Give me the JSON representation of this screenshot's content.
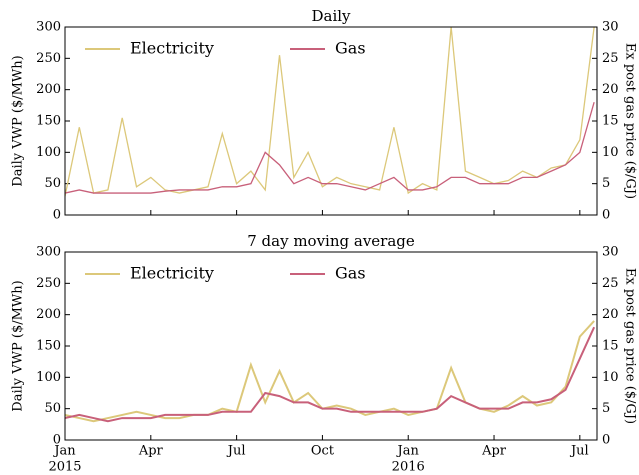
{
  "chart_data": [
    {
      "type": "line",
      "title": "Daily",
      "ylabel": "Daily VWP ($/MWh)",
      "y2label": "Ex post gas price ($/GJ)",
      "x": [
        0,
        0.5,
        1,
        1.5,
        2,
        2.5,
        3,
        3.5,
        4,
        4.5,
        5,
        5.5,
        6,
        6.5,
        7,
        7.5,
        8,
        8.5,
        9,
        9.5,
        10,
        10.5,
        11,
        11.5,
        12,
        12.5,
        13,
        13.5,
        14,
        14.5,
        15,
        15.5,
        16,
        16.5,
        17,
        17.5,
        18,
        18.5
      ],
      "xlim": [
        0,
        18.6
      ],
      "ylim": [
        0,
        300
      ],
      "yticks": [
        0,
        50,
        100,
        150,
        200,
        250,
        300
      ],
      "y2lim": [
        0,
        30
      ],
      "y2ticks": [
        0,
        5,
        10,
        15,
        20,
        25,
        30
      ],
      "legend": "upper left",
      "series": [
        {
          "name": "Electricity",
          "color": "#dcc87a",
          "values": [
            30,
            140,
            35,
            40,
            155,
            45,
            60,
            40,
            35,
            40,
            45,
            130,
            50,
            70,
            40,
            255,
            60,
            100,
            45,
            60,
            50,
            45,
            40,
            140,
            35,
            50,
            40,
            300,
            70,
            60,
            50,
            55,
            70,
            60,
            75,
            80,
            120,
            300
          ]
        },
        {
          "name": "Gas",
          "color": "#c8607a",
          "axis": "y2",
          "values": [
            3.5,
            4,
            3.5,
            3.5,
            3.5,
            3.5,
            3.5,
            3.8,
            4,
            4,
            4,
            4.5,
            4.5,
            5,
            10,
            8,
            5,
            6,
            5,
            5,
            4.5,
            4,
            5,
            6,
            4,
            4,
            4.5,
            6,
            6,
            5,
            5,
            5,
            6,
            6,
            7,
            8,
            10,
            18
          ]
        }
      ]
    },
    {
      "type": "line",
      "title": "7 day moving average",
      "ylabel": "Daily VWP ($/MWh)",
      "y2label": "Ex post gas price ($/GJ)",
      "x": [
        0,
        0.5,
        1,
        1.5,
        2,
        2.5,
        3,
        3.5,
        4,
        4.5,
        5,
        5.5,
        6,
        6.5,
        7,
        7.5,
        8,
        8.5,
        9,
        9.5,
        10,
        10.5,
        11,
        11.5,
        12,
        12.5,
        13,
        13.5,
        14,
        14.5,
        15,
        15.5,
        16,
        16.5,
        17,
        17.5,
        18,
        18.5
      ],
      "xlim": [
        0,
        18.6
      ],
      "ylim": [
        0,
        300
      ],
      "yticks": [
        0,
        50,
        100,
        150,
        200,
        250,
        300
      ],
      "y2lim": [
        0,
        30
      ],
      "y2ticks": [
        0,
        5,
        10,
        15,
        20,
        25,
        30
      ],
      "legend": "upper left",
      "xticks": [
        {
          "value": 0,
          "label": "Jan"
        },
        {
          "value": 3,
          "label": "Apr"
        },
        {
          "value": 6,
          "label": "Jul"
        },
        {
          "value": 9,
          "label": "Oct"
        },
        {
          "value": 12,
          "label": "Jan"
        },
        {
          "value": 15,
          "label": "Apr"
        },
        {
          "value": 18,
          "label": "Jul"
        }
      ],
      "xtick_years": [
        {
          "value": 0,
          "label": "2015"
        },
        {
          "value": 12,
          "label": "2016"
        }
      ],
      "series": [
        {
          "name": "Electricity",
          "color": "#dcc87a",
          "values": [
            40,
            35,
            30,
            35,
            40,
            45,
            40,
            35,
            35,
            40,
            40,
            50,
            45,
            120,
            60,
            110,
            60,
            75,
            50,
            55,
            50,
            40,
            45,
            50,
            40,
            45,
            50,
            115,
            60,
            50,
            45,
            55,
            70,
            55,
            60,
            85,
            165,
            190
          ]
        },
        {
          "name": "Gas",
          "color": "#c8607a",
          "axis": "y2",
          "values": [
            3.5,
            4,
            3.5,
            3,
            3.5,
            3.5,
            3.5,
            4,
            4,
            4,
            4,
            4.5,
            4.5,
            4.5,
            7.5,
            7,
            6,
            6,
            5,
            5,
            4.5,
            4.5,
            4.5,
            4.5,
            4.5,
            4.5,
            5,
            7,
            6,
            5,
            5,
            5,
            6,
            6,
            6.5,
            8,
            13,
            18
          ]
        }
      ]
    }
  ]
}
